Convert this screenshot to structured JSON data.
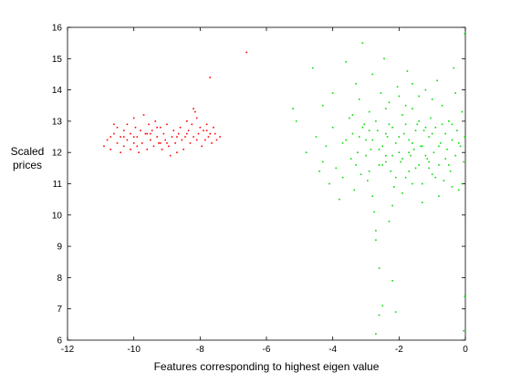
{
  "chart_data": {
    "type": "scatter",
    "xlabel": "Features corresponding to highest eigen value",
    "ylabel_lines": [
      "Scaled",
      "prices"
    ],
    "xlim": [
      -12,
      0
    ],
    "ylim": [
      6,
      16
    ],
    "xticks": [
      -12,
      -10,
      -8,
      -6,
      -4,
      -2,
      0
    ],
    "yticks": [
      6,
      7,
      8,
      9,
      10,
      11,
      12,
      13,
      14,
      15,
      16
    ],
    "grid": false,
    "legend": "none",
    "series": [
      {
        "color": "#ff0000",
        "points": [
          [
            -10.9,
            12.2
          ],
          [
            -10.8,
            12.4
          ],
          [
            -10.7,
            12.1
          ],
          [
            -10.6,
            12.6
          ],
          [
            -10.5,
            12.3
          ],
          [
            -10.5,
            12.8
          ],
          [
            -10.4,
            12.0
          ],
          [
            -10.4,
            12.5
          ],
          [
            -10.3,
            12.7
          ],
          [
            -10.3,
            12.2
          ],
          [
            -10.2,
            12.9
          ],
          [
            -10.2,
            12.4
          ],
          [
            -10.1,
            12.1
          ],
          [
            -10.1,
            12.6
          ],
          [
            -10.0,
            13.1
          ],
          [
            -10.0,
            12.3
          ],
          [
            -9.95,
            12.8
          ],
          [
            -9.9,
            12.5
          ],
          [
            -9.85,
            12.0
          ],
          [
            -9.8,
            12.7
          ],
          [
            -9.75,
            12.3
          ],
          [
            -9.7,
            13.2
          ],
          [
            -9.65,
            12.6
          ],
          [
            -9.6,
            12.1
          ],
          [
            -9.55,
            12.9
          ],
          [
            -9.5,
            12.4
          ],
          [
            -9.45,
            12.7
          ],
          [
            -9.4,
            12.2
          ],
          [
            -9.35,
            13.0
          ],
          [
            -9.3,
            12.5
          ],
          [
            -9.25,
            12.3
          ],
          [
            -9.2,
            12.8
          ],
          [
            -9.15,
            12.1
          ],
          [
            -9.1,
            12.6
          ],
          [
            -9.05,
            12.4
          ],
          [
            -9.0,
            12.9
          ],
          [
            -8.95,
            12.2
          ],
          [
            -8.9,
            11.9
          ],
          [
            -8.85,
            12.5
          ],
          [
            -8.8,
            12.7
          ],
          [
            -8.75,
            12.3
          ],
          [
            -8.7,
            12.0
          ],
          [
            -8.65,
            12.6
          ],
          [
            -8.6,
            12.8
          ],
          [
            -8.55,
            12.4
          ],
          [
            -8.5,
            12.1
          ],
          [
            -8.45,
            12.5
          ],
          [
            -8.4,
            13.0
          ],
          [
            -8.35,
            12.7
          ],
          [
            -8.3,
            12.3
          ],
          [
            -8.25,
            12.9
          ],
          [
            -8.2,
            12.5
          ],
          [
            -8.15,
            13.3
          ],
          [
            -8.1,
            13.1
          ],
          [
            -8.05,
            12.6
          ],
          [
            -8.0,
            12.8
          ],
          [
            -7.95,
            12.2
          ],
          [
            -7.9,
            12.7
          ],
          [
            -7.85,
            12.4
          ],
          [
            -7.8,
            12.9
          ],
          [
            -7.75,
            12.5
          ],
          [
            -7.7,
            12.6
          ],
          [
            -7.65,
            12.3
          ],
          [
            -7.6,
            12.8
          ],
          [
            -7.55,
            12.6
          ],
          [
            -7.5,
            12.4
          ],
          [
            -7.4,
            12.5
          ],
          [
            -10.6,
            12.9
          ],
          [
            -10.3,
            12.5
          ],
          [
            -9.9,
            12.2
          ],
          [
            -9.6,
            12.6
          ],
          [
            -9.3,
            12.8
          ],
          [
            -9.0,
            12.3
          ],
          [
            -8.7,
            12.5
          ],
          [
            -8.4,
            12.6
          ],
          [
            -8.1,
            12.4
          ],
          [
            -7.8,
            12.7
          ],
          [
            -8.2,
            13.4
          ],
          [
            -9.2,
            12.3
          ],
          [
            -9.5,
            12.6
          ],
          [
            -10.0,
            12.5
          ],
          [
            -10.7,
            12.5
          ],
          [
            -7.7,
            14.4
          ],
          [
            -6.6,
            15.2
          ]
        ]
      },
      {
        "color": "#00dd00",
        "points": [
          [
            -5.2,
            13.4
          ],
          [
            -5.1,
            13.0
          ],
          [
            -4.8,
            12.0
          ],
          [
            -4.6,
            14.7
          ],
          [
            -4.5,
            12.5
          ],
          [
            -4.4,
            11.4
          ],
          [
            -4.3,
            13.5
          ],
          [
            -4.2,
            12.2
          ],
          [
            -4.1,
            11.0
          ],
          [
            -4.0,
            12.8
          ],
          [
            -3.9,
            11.5
          ],
          [
            -3.8,
            10.5
          ],
          [
            -3.7,
            12.3
          ],
          [
            -3.6,
            14.9
          ],
          [
            -3.5,
            13.1
          ],
          [
            -3.45,
            11.8
          ],
          [
            -3.4,
            12.6
          ],
          [
            -3.35,
            10.8
          ],
          [
            -3.3,
            14.2
          ],
          [
            -3.25,
            12.0
          ],
          [
            -3.2,
            13.7
          ],
          [
            -3.15,
            11.3
          ],
          [
            -3.1,
            15.5
          ],
          [
            -3.05,
            12.9
          ],
          [
            -3.0,
            12.4
          ],
          [
            -2.95,
            11.1
          ],
          [
            -2.9,
            13.3
          ],
          [
            -2.85,
            12.1
          ],
          [
            -2.8,
            14.5
          ],
          [
            -2.75,
            10.1
          ],
          [
            -2.7,
            9.5
          ],
          [
            -2.7,
            9.2
          ],
          [
            -2.65,
            12.7
          ],
          [
            -2.6,
            11.6
          ],
          [
            -2.55,
            13.9
          ],
          [
            -2.5,
            12.2
          ],
          [
            -2.45,
            15.0
          ],
          [
            -2.4,
            11.9
          ],
          [
            -2.35,
            12.5
          ],
          [
            -2.3,
            13.6
          ],
          [
            -2.25,
            11.4
          ],
          [
            -2.2,
            12.8
          ],
          [
            -2.15,
            10.9
          ],
          [
            -2.1,
            12.3
          ],
          [
            -2.05,
            14.1
          ],
          [
            -2.0,
            12.0
          ],
          [
            -1.95,
            11.7
          ],
          [
            -1.9,
            13.2
          ],
          [
            -1.85,
            12.6
          ],
          [
            -1.8,
            11.2
          ],
          [
            -1.75,
            14.6
          ],
          [
            -1.7,
            12.4
          ],
          [
            -1.65,
            11.9
          ],
          [
            -1.6,
            13.4
          ],
          [
            -1.55,
            12.1
          ],
          [
            -1.5,
            11.5
          ],
          [
            -1.45,
            12.9
          ],
          [
            -1.4,
            13.8
          ],
          [
            -1.35,
            12.2
          ],
          [
            -1.3,
            11.0
          ],
          [
            -1.25,
            12.7
          ],
          [
            -1.2,
            14.0
          ],
          [
            -1.15,
            11.8
          ],
          [
            -1.1,
            12.5
          ],
          [
            -1.05,
            13.1
          ],
          [
            -1.0,
            11.3
          ],
          [
            -0.95,
            12.0
          ],
          [
            -0.9,
            12.8
          ],
          [
            -0.85,
            14.3
          ],
          [
            -0.8,
            11.6
          ],
          [
            -0.75,
            12.3
          ],
          [
            -0.7,
            13.5
          ],
          [
            -0.65,
            11.1
          ],
          [
            -0.6,
            12.6
          ],
          [
            -0.55,
            12.1
          ],
          [
            -0.5,
            13.0
          ],
          [
            -0.45,
            11.4
          ],
          [
            -0.4,
            12.4
          ],
          [
            -0.35,
            14.7
          ],
          [
            -0.3,
            11.9
          ],
          [
            -0.25,
            12.7
          ],
          [
            -0.2,
            10.8
          ],
          [
            -0.15,
            12.2
          ],
          [
            -0.1,
            13.3
          ],
          [
            -0.05,
            11.7
          ],
          [
            -0.02,
            12.5
          ],
          [
            -0.02,
            15.8
          ],
          [
            -0.02,
            7.4
          ],
          [
            -2.6,
            8.3
          ],
          [
            -2.2,
            7.9
          ],
          [
            -2.3,
            9.8
          ],
          [
            -2.5,
            7.1
          ],
          [
            -2.6,
            6.8
          ],
          [
            -2.7,
            6.2
          ],
          [
            -0.05,
            6.3
          ],
          [
            -2.1,
            6.9
          ],
          [
            -1.9,
            11.8
          ],
          [
            -1.8,
            12.9
          ],
          [
            -1.6,
            12.3
          ],
          [
            -1.4,
            11.6
          ],
          [
            -2.4,
            12.6
          ],
          [
            -2.2,
            11.9
          ],
          [
            -2.0,
            12.5
          ],
          [
            -1.7,
            12.0
          ],
          [
            -1.5,
            12.7
          ],
          [
            -1.3,
            12.2
          ],
          [
            -2.6,
            12.1
          ],
          [
            -2.8,
            12.4
          ],
          [
            -3.0,
            11.9
          ],
          [
            -3.2,
            12.5
          ],
          [
            -2.9,
            12.7
          ],
          [
            -2.3,
            12.9
          ],
          [
            -1.2,
            11.9
          ],
          [
            -1.0,
            12.6
          ],
          [
            -0.8,
            12.2
          ],
          [
            -0.6,
            11.8
          ],
          [
            -0.4,
            12.9
          ],
          [
            -0.2,
            12.3
          ],
          [
            -1.1,
            11.5
          ],
          [
            -0.9,
            11.2
          ],
          [
            -1.6,
            11.0
          ],
          [
            -2.1,
            11.2
          ],
          [
            -2.5,
            11.6
          ],
          [
            -3.1,
            12.8
          ],
          [
            -3.4,
            13.2
          ],
          [
            -3.6,
            12.4
          ],
          [
            -4.0,
            13.9
          ],
          [
            -4.3,
            11.7
          ],
          [
            -1.8,
            13.5
          ],
          [
            -1.4,
            13.0
          ],
          [
            -1.0,
            13.7
          ],
          [
            -0.7,
            12.9
          ],
          [
            -0.3,
            13.9
          ],
          [
            -2.7,
            13.0
          ],
          [
            -2.4,
            13.4
          ],
          [
            -2.0,
            13.8
          ],
          [
            -1.6,
            14.2
          ],
          [
            -1.2,
            12.8
          ],
          [
            -0.5,
            11.6
          ],
          [
            -0.1,
            11.0
          ],
          [
            -0.4,
            10.9
          ],
          [
            -0.8,
            10.6
          ],
          [
            -1.3,
            10.4
          ],
          [
            -1.9,
            10.7
          ],
          [
            -2.2,
            10.3
          ],
          [
            -2.8,
            10.6
          ],
          [
            -3.3,
            11.6
          ],
          [
            -3.7,
            11.2
          ],
          [
            -2.9,
            11.4
          ],
          [
            -2.4,
            11.7
          ],
          [
            -1.7,
            11.4
          ],
          [
            -1.1,
            11.7
          ]
        ]
      }
    ]
  }
}
